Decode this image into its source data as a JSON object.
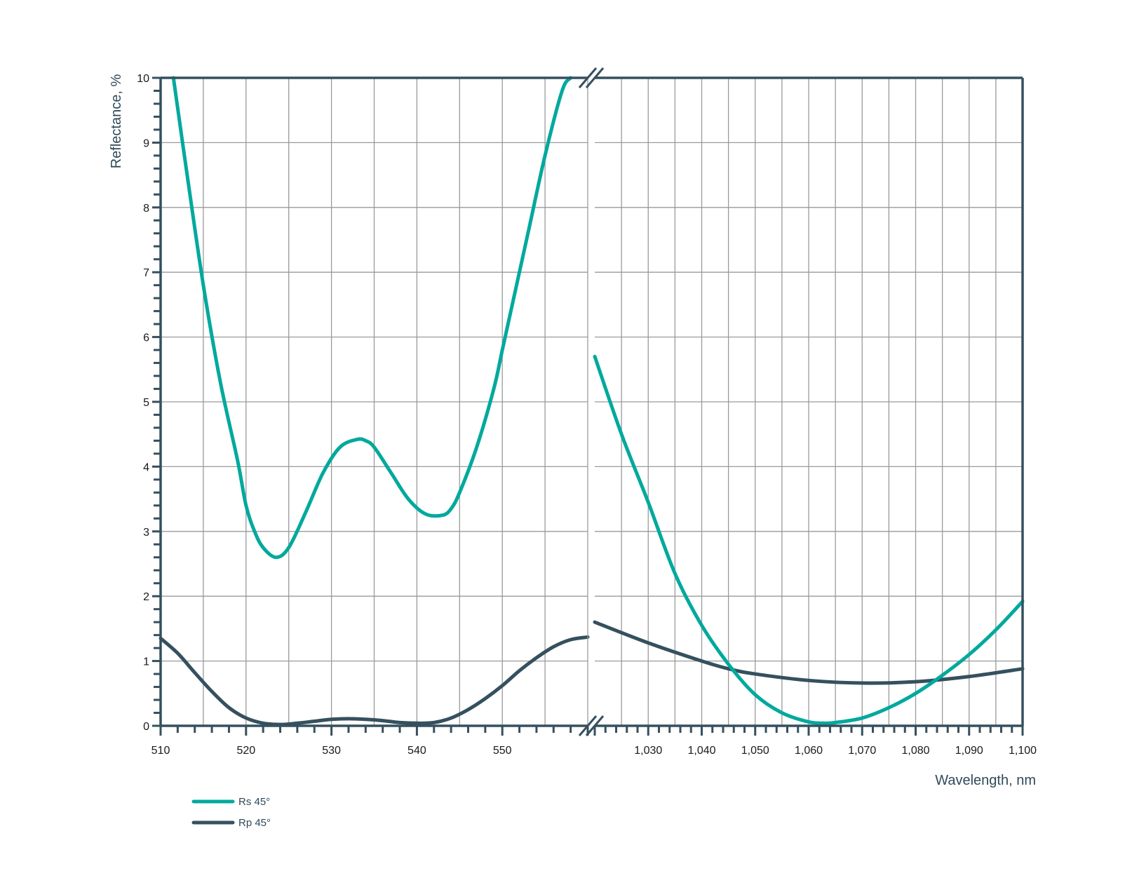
{
  "chart_data": {
    "type": "line",
    "xlabel": "Wavelength, nm",
    "ylabel": "Reflectance, %",
    "ylim": [
      0,
      10
    ],
    "y_ticks": [
      0,
      1,
      2,
      3,
      4,
      5,
      6,
      7,
      8,
      9,
      10
    ],
    "grid": true,
    "broken_x_axis": true,
    "panels": [
      {
        "xlim": [
          510,
          560
        ],
        "x_ticks": [
          "510",
          "520",
          "530",
          "540",
          "550"
        ],
        "x_tick_values": [
          510,
          520,
          530,
          540,
          550
        ]
      },
      {
        "xlim": [
          1020,
          1100
        ],
        "x_ticks": [
          "1,030",
          "1,040",
          "1,050",
          "1,060",
          "1,070",
          "1,080",
          "1,090",
          "1,100"
        ],
        "x_tick_values": [
          1030,
          1040,
          1050,
          1060,
          1070,
          1080,
          1090,
          1100
        ]
      }
    ],
    "series": [
      {
        "name": "Rs 45°",
        "color": "#00a99d",
        "segments": [
          {
            "x": [
              511.5,
              513,
              515,
              517,
              519,
              520,
              521,
              522,
              523.5,
              525,
              527,
              529,
              531,
              533,
              534,
              535,
              537,
              539,
              541,
              543,
              544,
              545,
              547,
              549,
              550,
              551,
              553,
              555,
              557,
              558
            ],
            "y": [
              10.0,
              8.6,
              6.8,
              5.3,
              4.1,
              3.4,
              3.0,
              2.75,
              2.6,
              2.75,
              3.3,
              3.9,
              4.3,
              4.42,
              4.4,
              4.3,
              3.9,
              3.5,
              3.27,
              3.25,
              3.35,
              3.6,
              4.3,
              5.2,
              5.8,
              6.4,
              7.6,
              8.8,
              9.8,
              10.0
            ]
          },
          {
            "x": [
              1020,
              1025,
              1030,
              1035,
              1040,
              1045,
              1050,
              1055,
              1060,
              1063,
              1065,
              1070,
              1075,
              1080,
              1085,
              1090,
              1095,
              1100
            ],
            "y": [
              5.7,
              4.5,
              3.45,
              2.35,
              1.55,
              0.95,
              0.48,
              0.2,
              0.06,
              0.04,
              0.05,
              0.12,
              0.28,
              0.5,
              0.78,
              1.1,
              1.48,
              1.92
            ]
          }
        ]
      },
      {
        "name": "Rp 45°",
        "color": "#35505e",
        "segments": [
          {
            "x": [
              510,
              512,
              514,
              516,
              518,
              520,
              522,
              524,
              526,
              528,
              530,
              532,
              534,
              536,
              538,
              540,
              542,
              544,
              546,
              548,
              550,
              552,
              554,
              556,
              558,
              560
            ],
            "y": [
              1.35,
              1.12,
              0.82,
              0.53,
              0.28,
              0.12,
              0.04,
              0.02,
              0.04,
              0.07,
              0.1,
              0.11,
              0.1,
              0.08,
              0.05,
              0.04,
              0.05,
              0.12,
              0.25,
              0.42,
              0.62,
              0.85,
              1.05,
              1.22,
              1.33,
              1.37
            ]
          },
          {
            "x": [
              1020,
              1030,
              1040,
              1045,
              1050,
              1060,
              1070,
              1080,
              1090,
              1100
            ],
            "y": [
              1.6,
              1.28,
              1.0,
              0.88,
              0.8,
              0.7,
              0.66,
              0.68,
              0.76,
              0.88
            ]
          }
        ]
      }
    ]
  }
}
